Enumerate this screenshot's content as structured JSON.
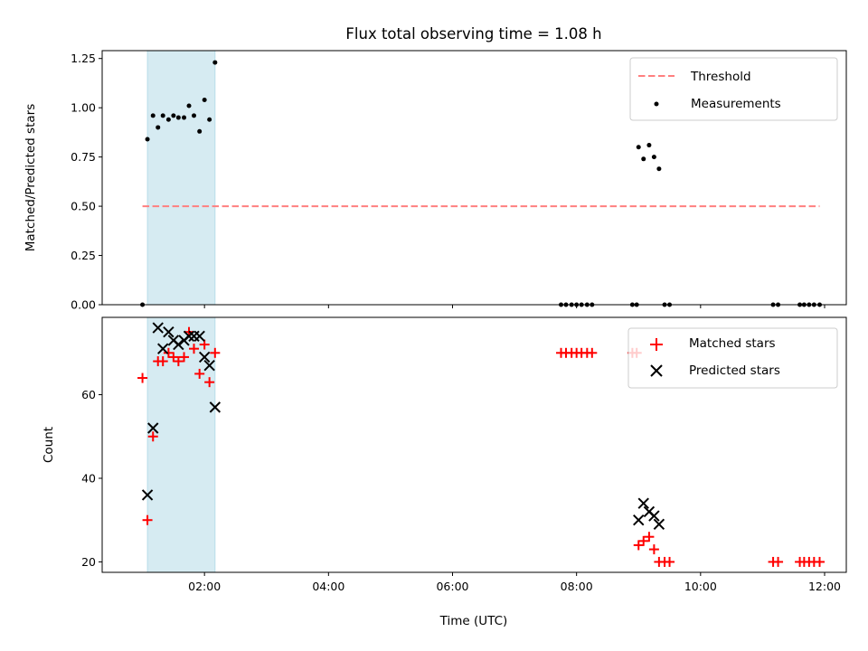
{
  "chart_data": {
    "title": "Flux total observing time = 1.08 h",
    "xlabel": "Time (UTC)",
    "xlim_hours": [
      0.35,
      12.35
    ],
    "x_ticks": [
      {
        "hour": 2,
        "label": "02:00"
      },
      {
        "hour": 4,
        "label": "04:00"
      },
      {
        "hour": 6,
        "label": "06:00"
      },
      {
        "hour": 8,
        "label": "08:00"
      },
      {
        "hour": 10,
        "label": "10:00"
      },
      {
        "hour": 12,
        "label": "12:00"
      }
    ],
    "shaded_span_hours": [
      1.08,
      2.17
    ],
    "shaded_color": "#add8e6",
    "panels": [
      {
        "type": "scatter",
        "ylabel": "Matched/Predicted stars",
        "ylim": [
          0,
          1.29
        ],
        "y_ticks": [
          {
            "value": 0,
            "label": "0.00"
          },
          {
            "value": 0.25,
            "label": "0.25"
          },
          {
            "value": 0.5,
            "label": "0.50"
          },
          {
            "value": 0.75,
            "label": "0.75"
          },
          {
            "value": 1.0,
            "label": "1.00"
          },
          {
            "value": 1.25,
            "label": "1.25"
          }
        ],
        "show_x_tick_labels": false,
        "threshold": {
          "name": "Threshold",
          "value": 0.5,
          "x_range": [
            1.0,
            11.92
          ],
          "color": "#ff7f7f"
        },
        "series": [
          {
            "name": "Measurements",
            "marker": "dot",
            "color": "#000000",
            "x": [
              1.0,
              1.08,
              1.17,
              1.25,
              1.33,
              1.42,
              1.5,
              1.58,
              1.67,
              1.75,
              1.83,
              1.92,
              2.0,
              2.08,
              2.17,
              7.75,
              7.83,
              7.92,
              8.0,
              8.08,
              8.17,
              8.25,
              8.9,
              8.97,
              9.0,
              9.08,
              9.17,
              9.25,
              9.33,
              9.42,
              9.5,
              11.17,
              11.25,
              11.6,
              11.67,
              11.75,
              11.83,
              11.92
            ],
            "y": [
              0.0,
              0.84,
              0.96,
              0.9,
              0.96,
              0.94,
              0.96,
              0.95,
              0.95,
              1.01,
              0.96,
              0.88,
              1.04,
              0.94,
              1.23,
              0,
              0,
              0,
              0,
              0,
              0,
              0,
              0,
              0,
              0.8,
              0.74,
              0.81,
              0.75,
              0.69,
              0,
              0,
              0,
              0,
              0,
              0,
              0,
              0,
              0
            ]
          }
        ]
      },
      {
        "type": "scatter",
        "ylabel": "Count",
        "ylim": [
          17.5,
          78.5
        ],
        "y_ticks": [
          {
            "value": 20,
            "label": "20"
          },
          {
            "value": 40,
            "label": "40"
          },
          {
            "value": 60,
            "label": "60"
          }
        ],
        "show_x_tick_labels": true,
        "series": [
          {
            "name": "Matched stars",
            "marker": "plus",
            "color": "#ff0000",
            "x": [
              1.0,
              1.08,
              1.17,
              1.25,
              1.33,
              1.42,
              1.5,
              1.58,
              1.67,
              1.75,
              1.83,
              1.92,
              2.0,
              2.08,
              2.17,
              7.75,
              7.83,
              7.92,
              8.0,
              8.08,
              8.17,
              8.25,
              8.9,
              8.97,
              9.0,
              9.08,
              9.17,
              9.25,
              9.33,
              9.42,
              9.5,
              11.17,
              11.25,
              11.6,
              11.67,
              11.75,
              11.83,
              11.92
            ],
            "y": [
              64,
              30,
              50,
              68,
              68,
              70,
              69,
              68,
              69,
              75,
              71,
              65,
              72,
              63,
              70,
              70,
              70,
              70,
              70,
              70,
              70,
              70,
              70,
              70,
              24,
              25,
              26,
              23,
              20,
              20,
              20,
              20,
              20,
              20,
              20,
              20,
              20,
              20
            ]
          },
          {
            "name": "Predicted stars",
            "marker": "x",
            "color": "#000000",
            "x": [
              1.08,
              1.17,
              1.25,
              1.33,
              1.42,
              1.5,
              1.58,
              1.67,
              1.75,
              1.83,
              1.92,
              2.0,
              2.08,
              2.17,
              9.0,
              9.08,
              9.17,
              9.25,
              9.33
            ],
            "y": [
              36,
              52,
              76,
              71,
              75,
              73,
              72,
              73,
              74,
              74,
              74,
              69,
              67,
              57,
              30,
              34,
              32,
              31,
              29
            ]
          }
        ]
      }
    ]
  }
}
